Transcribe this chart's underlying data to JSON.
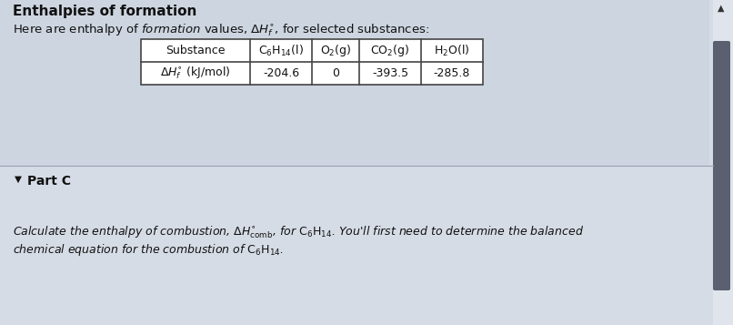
{
  "title": "Enthalpies of formation",
  "bg_color": "#d6dce6",
  "bg_color_light": "#dde3ec",
  "panel_top_color": "#cdd5e0",
  "panel_bottom_color": "#c5cdd8",
  "table_border": "#444444",
  "text_color": "#111111",
  "table_values": [
    "-204.6",
    "0",
    "-393.5",
    "-285.8"
  ],
  "part_c_label": "Part C",
  "scrollbar_bg": "#dce0e8",
  "scrollbar_handle": "#5a6070",
  "figsize": [
    8.06,
    3.57
  ],
  "dpi": 100
}
